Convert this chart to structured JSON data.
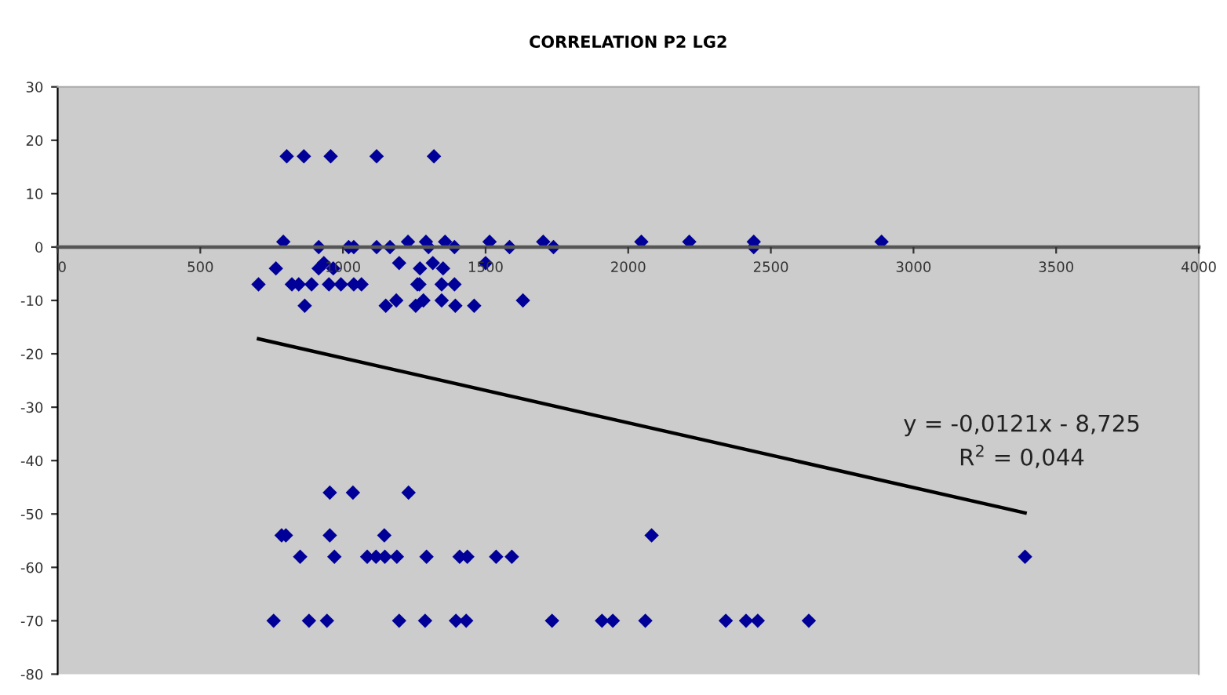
{
  "chart_data": {
    "type": "scatter",
    "title": "CORRELATION P2 LG2",
    "series": [
      {
        "color": "#000099",
        "marker": "diamond",
        "x": [
          803,
          863,
          957,
          1118,
          1319,
          791,
          1228,
          1291,
          1358,
          1514,
          1702,
          2046,
          2214,
          2440,
          2888,
          915,
          1020,
          1038,
          1118,
          1165,
          1300,
          1391,
          1584,
          1738,
          2440,
          765,
          915,
          966,
          1270,
          1351,
          933,
          1197,
          1315,
          1500,
          704,
          821,
          845,
          890,
          951,
          993,
          1038,
          1065,
          1261,
          1268,
          1346,
          1391,
          1187,
          1282,
          1346,
          1631,
          866,
          1150,
          1255,
          1394,
          1460,
          954,
          1035,
          1230,
          785,
          800,
          954,
          1145,
          2082,
          850,
          970,
          1085,
          1116,
          1147,
          1189,
          1293,
          1409,
          1436,
          1537,
          1592,
          3391,
          757,
          881,
          944,
          1197,
          1288,
          1396,
          1432,
          1733,
          1908,
          1946,
          2060,
          2342,
          2413,
          2454,
          2633
        ],
        "values": [
          17,
          17,
          17,
          17,
          17,
          1,
          1,
          1,
          1,
          1,
          1,
          1,
          1,
          1,
          1,
          0,
          0,
          0,
          0,
          0,
          0,
          0,
          0,
          0,
          0,
          -4,
          -4,
          -4,
          -4,
          -4,
          -3,
          -3,
          -3,
          -3,
          -7,
          -7,
          -7,
          -7,
          -7,
          -7,
          -7,
          -7,
          -7,
          -7,
          -7,
          -7,
          -10,
          -10,
          -10,
          -10,
          -11,
          -11,
          -11,
          -11,
          -11,
          -46,
          -46,
          -46,
          -54,
          -54,
          -54,
          -54,
          -54,
          -58,
          -58,
          -58,
          -58,
          -58,
          -58,
          -58,
          -58,
          -58,
          -58,
          -58,
          -58,
          -70,
          -70,
          -70,
          -70,
          -70,
          -70,
          -70,
          -70,
          -70,
          -70,
          -70,
          -70,
          -70,
          -70,
          -70
        ]
      },
      {
        "type": "line",
        "color": "#000000",
        "x": [
          704,
          3391
        ],
        "values": [
          -17.2,
          -49.8
        ]
      }
    ],
    "annotations": [
      "y = -0,0121x - 8,725",
      "R$^{2}$ = 0,044"
    ],
    "xlim": [
      0,
      4000
    ],
    "xticks": [
      0,
      500,
      1000,
      1500,
      2000,
      2500,
      3000,
      3500,
      4000
    ],
    "ylim": [
      -80,
      30
    ],
    "yticks": [
      -80,
      -70,
      -60,
      -50,
      -40,
      -30,
      -20,
      -10,
      0,
      10,
      20,
      30
    ],
    "grid": false,
    "legend": false
  }
}
